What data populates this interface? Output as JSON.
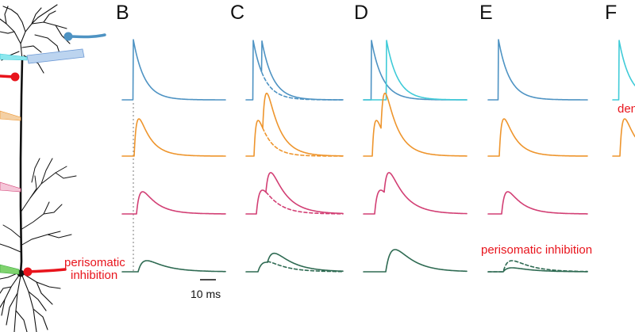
{
  "panels": [
    {
      "letter": "B"
    },
    {
      "letter": "C"
    },
    {
      "letter": "D"
    },
    {
      "letter": "E"
    },
    {
      "letter": "F"
    }
  ],
  "neuron_labels": {
    "perisomatic_line1": "perisomatic",
    "perisomatic_line2": "inhibition"
  },
  "panel_e_label": "perisomatic inhibition",
  "panel_f_partial_label": "den",
  "scale_bar": {
    "label": "10 ms"
  },
  "colors": {
    "dendrite_distal": "#4e93c3",
    "dendrite_tuft_input": "#3fcbd8",
    "dendrite_apical": "#ee952d",
    "dendrite_oblique": "#d23f74",
    "soma": "#2e6a52",
    "inhibition": "#e8141c",
    "neuron": "#111111"
  },
  "icons": [
    "pyramidal-neuron-icon",
    "pipette-icon",
    "axon-terminal-icon"
  ]
}
